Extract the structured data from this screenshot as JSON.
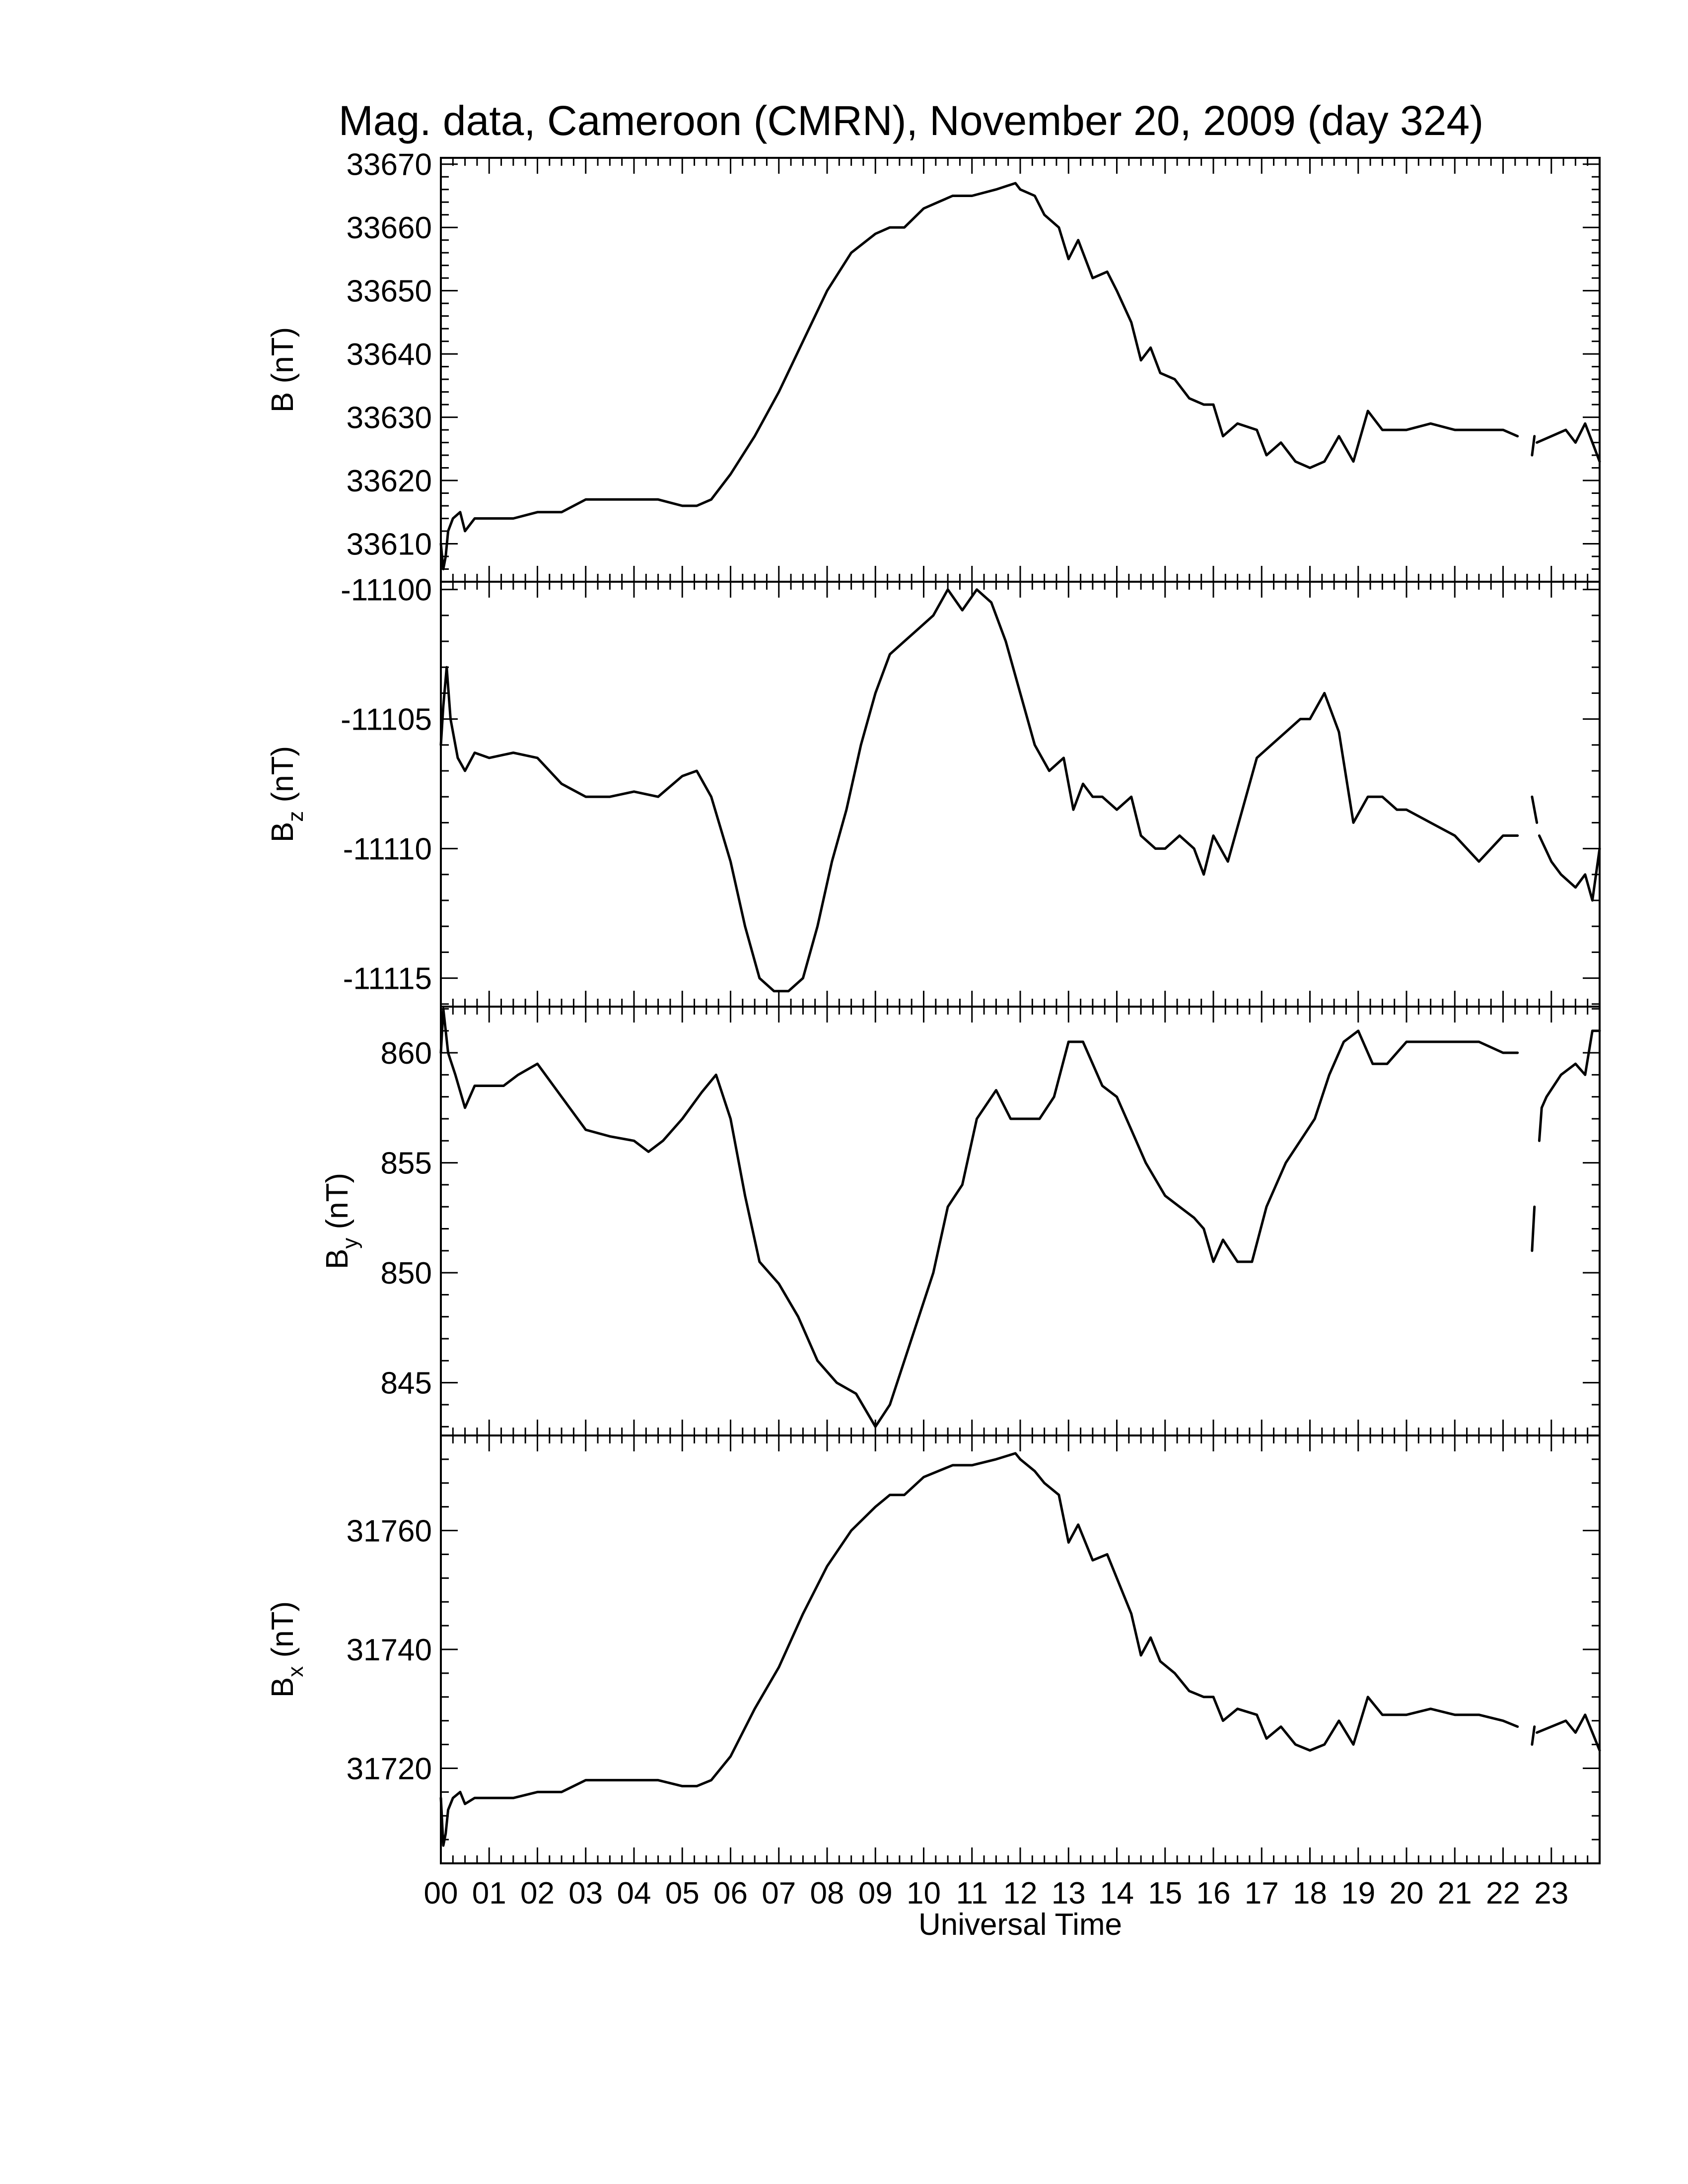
{
  "chart_data": {
    "type": "line",
    "title": "Mag. data, Cameroon (CMRN), November 20, 2009 (day 324)",
    "xlabel": "Universal Time",
    "x_tick_labels": [
      "00",
      "01",
      "02",
      "03",
      "04",
      "05",
      "06",
      "07",
      "08",
      "09",
      "10",
      "11",
      "12",
      "13",
      "14",
      "15",
      "16",
      "17",
      "18",
      "19",
      "20",
      "21",
      "22",
      "23"
    ],
    "xlim": [
      0,
      24
    ],
    "panels": [
      {
        "id": "B",
        "ylabel_main": "B",
        "ylabel_sub": "",
        "ylabel_unit": "(nT)",
        "ylim": [
          33604,
          33671
        ],
        "yticks": [
          33610,
          33620,
          33630,
          33640,
          33650,
          33660,
          33670
        ],
        "x": [
          0.0,
          0.05,
          0.1,
          0.15,
          0.25,
          0.4,
          0.5,
          0.7,
          1.0,
          1.5,
          2.0,
          2.5,
          3.0,
          3.5,
          4.0,
          4.5,
          5.0,
          5.3,
          5.6,
          6.0,
          6.5,
          7.0,
          7.5,
          8.0,
          8.5,
          9.0,
          9.3,
          9.6,
          10.0,
          10.3,
          10.6,
          11.0,
          11.5,
          11.9,
          12.0,
          12.3,
          12.5,
          12.8,
          13.0,
          13.2,
          13.5,
          13.8,
          14.0,
          14.3,
          14.5,
          14.7,
          14.9,
          15.2,
          15.5,
          15.8,
          16.0,
          16.2,
          16.5,
          16.9,
          17.1,
          17.4,
          17.7,
          18.0,
          18.3,
          18.6,
          18.9,
          19.2,
          19.5,
          19.8,
          20.0,
          20.5,
          21.0,
          21.5,
          22.0,
          22.3,
          null,
          22.6,
          22.65,
          null,
          22.7,
          23.0,
          23.3,
          23.5,
          23.7,
          23.9,
          24.0
        ],
        "y": [
          33610,
          33606,
          33608,
          33612,
          33614,
          33615,
          33612,
          33614,
          33614,
          33614,
          33615,
          33615,
          33617,
          33617,
          33617,
          33617,
          33616,
          33616,
          33617,
          33621,
          33627,
          33634,
          33642,
          33650,
          33656,
          33659,
          33660,
          33660,
          33663,
          33664,
          33665,
          33665,
          33666,
          33667,
          33666,
          33665,
          33662,
          33660,
          33655,
          33658,
          33652,
          33653,
          33650,
          33645,
          33639,
          33641,
          33637,
          33636,
          33633,
          33632,
          33632,
          33627,
          33629,
          33628,
          33624,
          33626,
          33623,
          33622,
          33623,
          33627,
          33623,
          33631,
          33628,
          33628,
          33628,
          33629,
          33628,
          33628,
          33628,
          33627,
          null,
          33624,
          33627,
          null,
          33626,
          33627,
          33628,
          33626,
          33629,
          33625,
          33623
        ]
      },
      {
        "id": "Bz",
        "ylabel_main": "B",
        "ylabel_sub": "z",
        "ylabel_unit": "(nT)",
        "ylim": [
          -11116.1,
          -11099.7
        ],
        "yticks": [
          -11100,
          -11105,
          -11110,
          -11115
        ],
        "x": [
          0.0,
          0.05,
          0.12,
          0.2,
          0.35,
          0.5,
          0.7,
          1.0,
          1.5,
          2.0,
          2.5,
          3.0,
          3.5,
          4.0,
          4.5,
          5.0,
          5.3,
          5.6,
          6.0,
          6.3,
          6.6,
          6.9,
          7.2,
          7.5,
          7.8,
          8.1,
          8.4,
          8.7,
          9.0,
          9.3,
          9.6,
          9.9,
          10.2,
          10.5,
          10.8,
          11.1,
          11.4,
          11.7,
          12.0,
          12.3,
          12.6,
          12.9,
          13.1,
          13.3,
          13.5,
          13.7,
          14.0,
          14.3,
          14.5,
          14.8,
          15.0,
          15.3,
          15.6,
          15.8,
          16.0,
          16.3,
          16.6,
          16.9,
          17.2,
          17.5,
          17.8,
          18.0,
          18.3,
          18.6,
          18.9,
          19.2,
          19.5,
          19.8,
          20.0,
          20.5,
          21.0,
          21.5,
          22.0,
          22.3,
          null,
          22.6,
          22.7,
          null,
          22.75,
          23.0,
          23.2,
          23.5,
          23.7,
          23.85,
          24.0
        ],
        "y": [
          -11106,
          -11104.5,
          -11103,
          -11105,
          -11106.5,
          -11107,
          -11106.3,
          -11106.5,
          -11106.3,
          -11106.5,
          -11107.5,
          -11108,
          -11108,
          -11107.8,
          -11108,
          -11107.2,
          -11107,
          -11108,
          -11110.5,
          -11113,
          -11115,
          -11115.5,
          -11115.5,
          -11115,
          -11113,
          -11110.5,
          -11108.5,
          -11106,
          -11104,
          -11102.5,
          -11102,
          -11101.5,
          -11101,
          -11100,
          -11100.8,
          -11100,
          -11100.5,
          -11102,
          -11104,
          -11106,
          -11107,
          -11106.5,
          -11108.5,
          -11107.5,
          -11108,
          -11108,
          -11108.5,
          -11108,
          -11109.5,
          -11110,
          -11110,
          -11109.5,
          -11110,
          -11111,
          -11109.5,
          -11110.5,
          -11108.5,
          -11106.5,
          -11106,
          -11105.5,
          -11105,
          -11105,
          -11104,
          -11105.5,
          -11109,
          -11108,
          -11108,
          -11108.5,
          -11108.5,
          -11109,
          -11109.5,
          -11110.5,
          -11109.5,
          -11109.5,
          null,
          -11108,
          -11109,
          null,
          -11109.5,
          -11110.5,
          -11111,
          -11111.5,
          -11111,
          -11112,
          -11110
        ]
      },
      {
        "id": "By",
        "ylabel_main": "B",
        "ylabel_sub": "y",
        "ylabel_unit": "(nT)",
        "ylim": [
          842.6,
          862.1
        ],
        "yticks": [
          845,
          850,
          855,
          860
        ],
        "x": [
          0.0,
          0.05,
          0.15,
          0.3,
          0.5,
          0.7,
          1.0,
          1.3,
          1.6,
          2.0,
          2.5,
          3.0,
          3.5,
          4.0,
          4.3,
          4.6,
          5.0,
          5.4,
          5.7,
          6.0,
          6.3,
          6.6,
          7.0,
          7.4,
          7.8,
          8.2,
          8.6,
          9.0,
          9.3,
          9.6,
          9.9,
          10.2,
          10.5,
          10.8,
          11.1,
          11.5,
          11.8,
          12.1,
          12.4,
          12.7,
          13.0,
          13.3,
          13.7,
          14.0,
          14.3,
          14.6,
          15.0,
          15.3,
          15.6,
          15.8,
          16.0,
          16.2,
          16.5,
          16.8,
          17.1,
          17.5,
          17.8,
          18.1,
          18.4,
          18.7,
          19.0,
          19.3,
          19.6,
          20.0,
          20.5,
          21.0,
          21.5,
          22.0,
          22.3,
          null,
          22.6,
          22.65,
          null,
          22.75,
          22.8,
          22.9,
          23.2,
          23.5,
          23.7,
          23.85,
          24.0
        ],
        "y": [
          860,
          862,
          860,
          859,
          857.5,
          858.5,
          858.5,
          858.5,
          859,
          859.5,
          858,
          856.5,
          856.2,
          856,
          855.5,
          856,
          857,
          858.2,
          859,
          857,
          853.5,
          850.5,
          849.5,
          848,
          846,
          845,
          844.5,
          843,
          844,
          846,
          848,
          850,
          853,
          854,
          857,
          858.3,
          857,
          857,
          857,
          858,
          860.5,
          860.5,
          858.5,
          858,
          856.5,
          855,
          853.5,
          853,
          852.5,
          852,
          850.5,
          851.5,
          850.5,
          850.5,
          853,
          855,
          856,
          857,
          859,
          860.5,
          861,
          859.5,
          859.5,
          860.5,
          860.5,
          860.5,
          860.5,
          860,
          860,
          null,
          851,
          853,
          null,
          856,
          857.5,
          858,
          859,
          859.5,
          859,
          861,
          861
        ]
      },
      {
        "id": "Bx",
        "ylabel_main": "B",
        "ylabel_sub": "x",
        "ylabel_unit": "(nT)",
        "ylim": [
          31704,
          31776
        ],
        "yticks": [
          31720,
          31740,
          31760
        ],
        "x": [
          0.0,
          0.05,
          0.1,
          0.15,
          0.25,
          0.4,
          0.5,
          0.7,
          1.0,
          1.5,
          2.0,
          2.5,
          3.0,
          3.5,
          4.0,
          4.5,
          5.0,
          5.3,
          5.6,
          6.0,
          6.5,
          7.0,
          7.5,
          8.0,
          8.5,
          9.0,
          9.3,
          9.6,
          10.0,
          10.3,
          10.6,
          11.0,
          11.5,
          11.9,
          12.0,
          12.3,
          12.5,
          12.8,
          13.0,
          13.2,
          13.5,
          13.8,
          14.0,
          14.3,
          14.5,
          14.7,
          14.9,
          15.2,
          15.5,
          15.8,
          16.0,
          16.2,
          16.5,
          16.9,
          17.1,
          17.4,
          17.7,
          18.0,
          18.3,
          18.6,
          18.9,
          19.2,
          19.5,
          19.8,
          20.0,
          20.5,
          21.0,
          21.5,
          22.0,
          22.3,
          null,
          22.6,
          22.65,
          null,
          22.7,
          23.0,
          23.3,
          23.5,
          23.7,
          23.9,
          24.0
        ],
        "y": [
          31715,
          31707,
          31709,
          31713,
          31715,
          31716,
          31714,
          31715,
          31715,
          31715,
          31716,
          31716,
          31718,
          31718,
          31718,
          31718,
          31717,
          31717,
          31718,
          31722,
          31730,
          31737,
          31746,
          31754,
          31760,
          31764,
          31766,
          31766,
          31769,
          31770,
          31771,
          31771,
          31772,
          31773,
          31772,
          31770,
          31768,
          31766,
          31758,
          31761,
          31755,
          31756,
          31752,
          31746,
          31739,
          31742,
          31738,
          31736,
          31733,
          31732,
          31732,
          31728,
          31730,
          31729,
          31725,
          31727,
          31724,
          31723,
          31724,
          31728,
          31724,
          31732,
          31729,
          31729,
          31729,
          31730,
          31729,
          31729,
          31728,
          31727,
          null,
          31724,
          31727,
          null,
          31726,
          31727,
          31728,
          31726,
          31729,
          31725,
          31723
        ]
      }
    ]
  }
}
